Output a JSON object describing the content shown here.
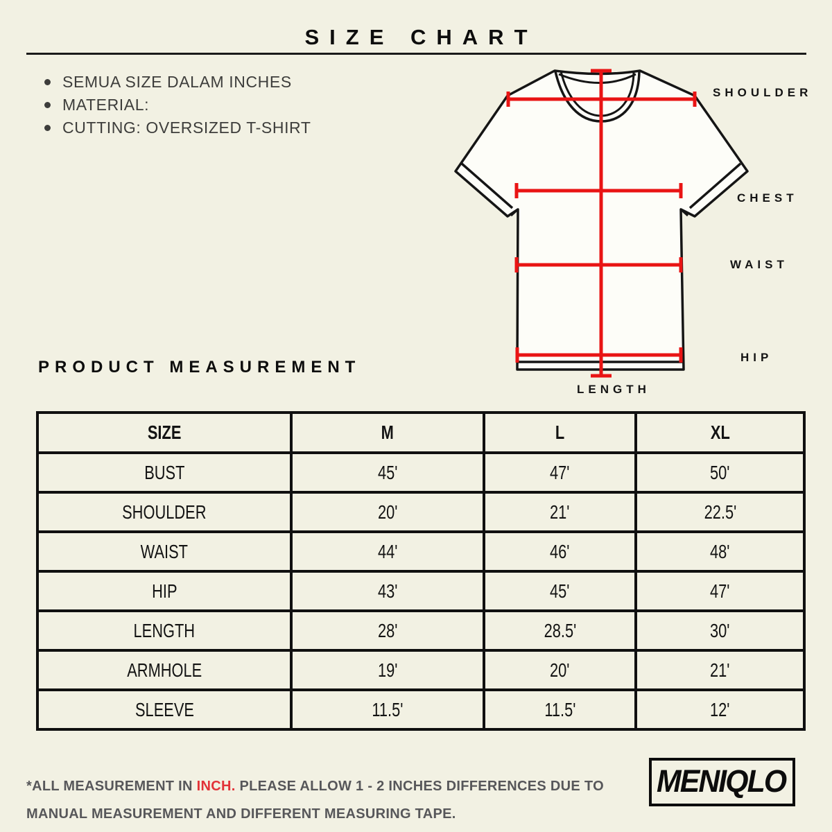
{
  "colors": {
    "background": "#F2F1E3",
    "ink": "#0D0D0D",
    "note_text": "#3D3D3B",
    "measure_line_red": "#E91414",
    "footer_text": "#57575A",
    "footer_highlight_red": "#E23238"
  },
  "header": {
    "title": "SIZE CHART"
  },
  "notes": {
    "items": [
      "SEMUA SIZE DALAM INCHES",
      "MATERIAL:",
      "CUTTING: OVERSIZED T-SHIRT"
    ]
  },
  "diagram": {
    "labels": {
      "shoulder": "SHOULDER",
      "chest": "CHEST",
      "waist": "WAIST",
      "hip": "HIP",
      "length": "LENGTH"
    }
  },
  "section": {
    "title": "PRODUCT MEASUREMENT"
  },
  "table": {
    "columns": [
      "SIZE",
      "M",
      "L",
      "XL"
    ],
    "rows": [
      {
        "label": "BUST",
        "values": [
          "45'",
          "47'",
          "50'"
        ]
      },
      {
        "label": "SHOULDER",
        "values": [
          "20'",
          "21'",
          "22.5'"
        ]
      },
      {
        "label": "WAIST",
        "values": [
          "44'",
          "46'",
          "48'"
        ]
      },
      {
        "label": "HIP",
        "values": [
          "43'",
          "45'",
          "47'"
        ]
      },
      {
        "label": "LENGTH",
        "values": [
          "28'",
          "28.5'",
          "30'"
        ]
      },
      {
        "label": "ARMHOLE",
        "values": [
          "19'",
          "20'",
          "21'"
        ]
      },
      {
        "label": "SLEEVE",
        "values": [
          "11.5'",
          "11.5'",
          "12'"
        ]
      }
    ]
  },
  "footer": {
    "note_prefix": "*ALL MEASUREMENT IN ",
    "note_highlight": "INCH.",
    "note_suffix": " PLEASE ALLOW 1 - 2 INCHES DIFFERENCES DUE TO MANUAL MEASUREMENT AND DIFFERENT MEASURING TAPE.",
    "brand": "MENIQLO"
  }
}
